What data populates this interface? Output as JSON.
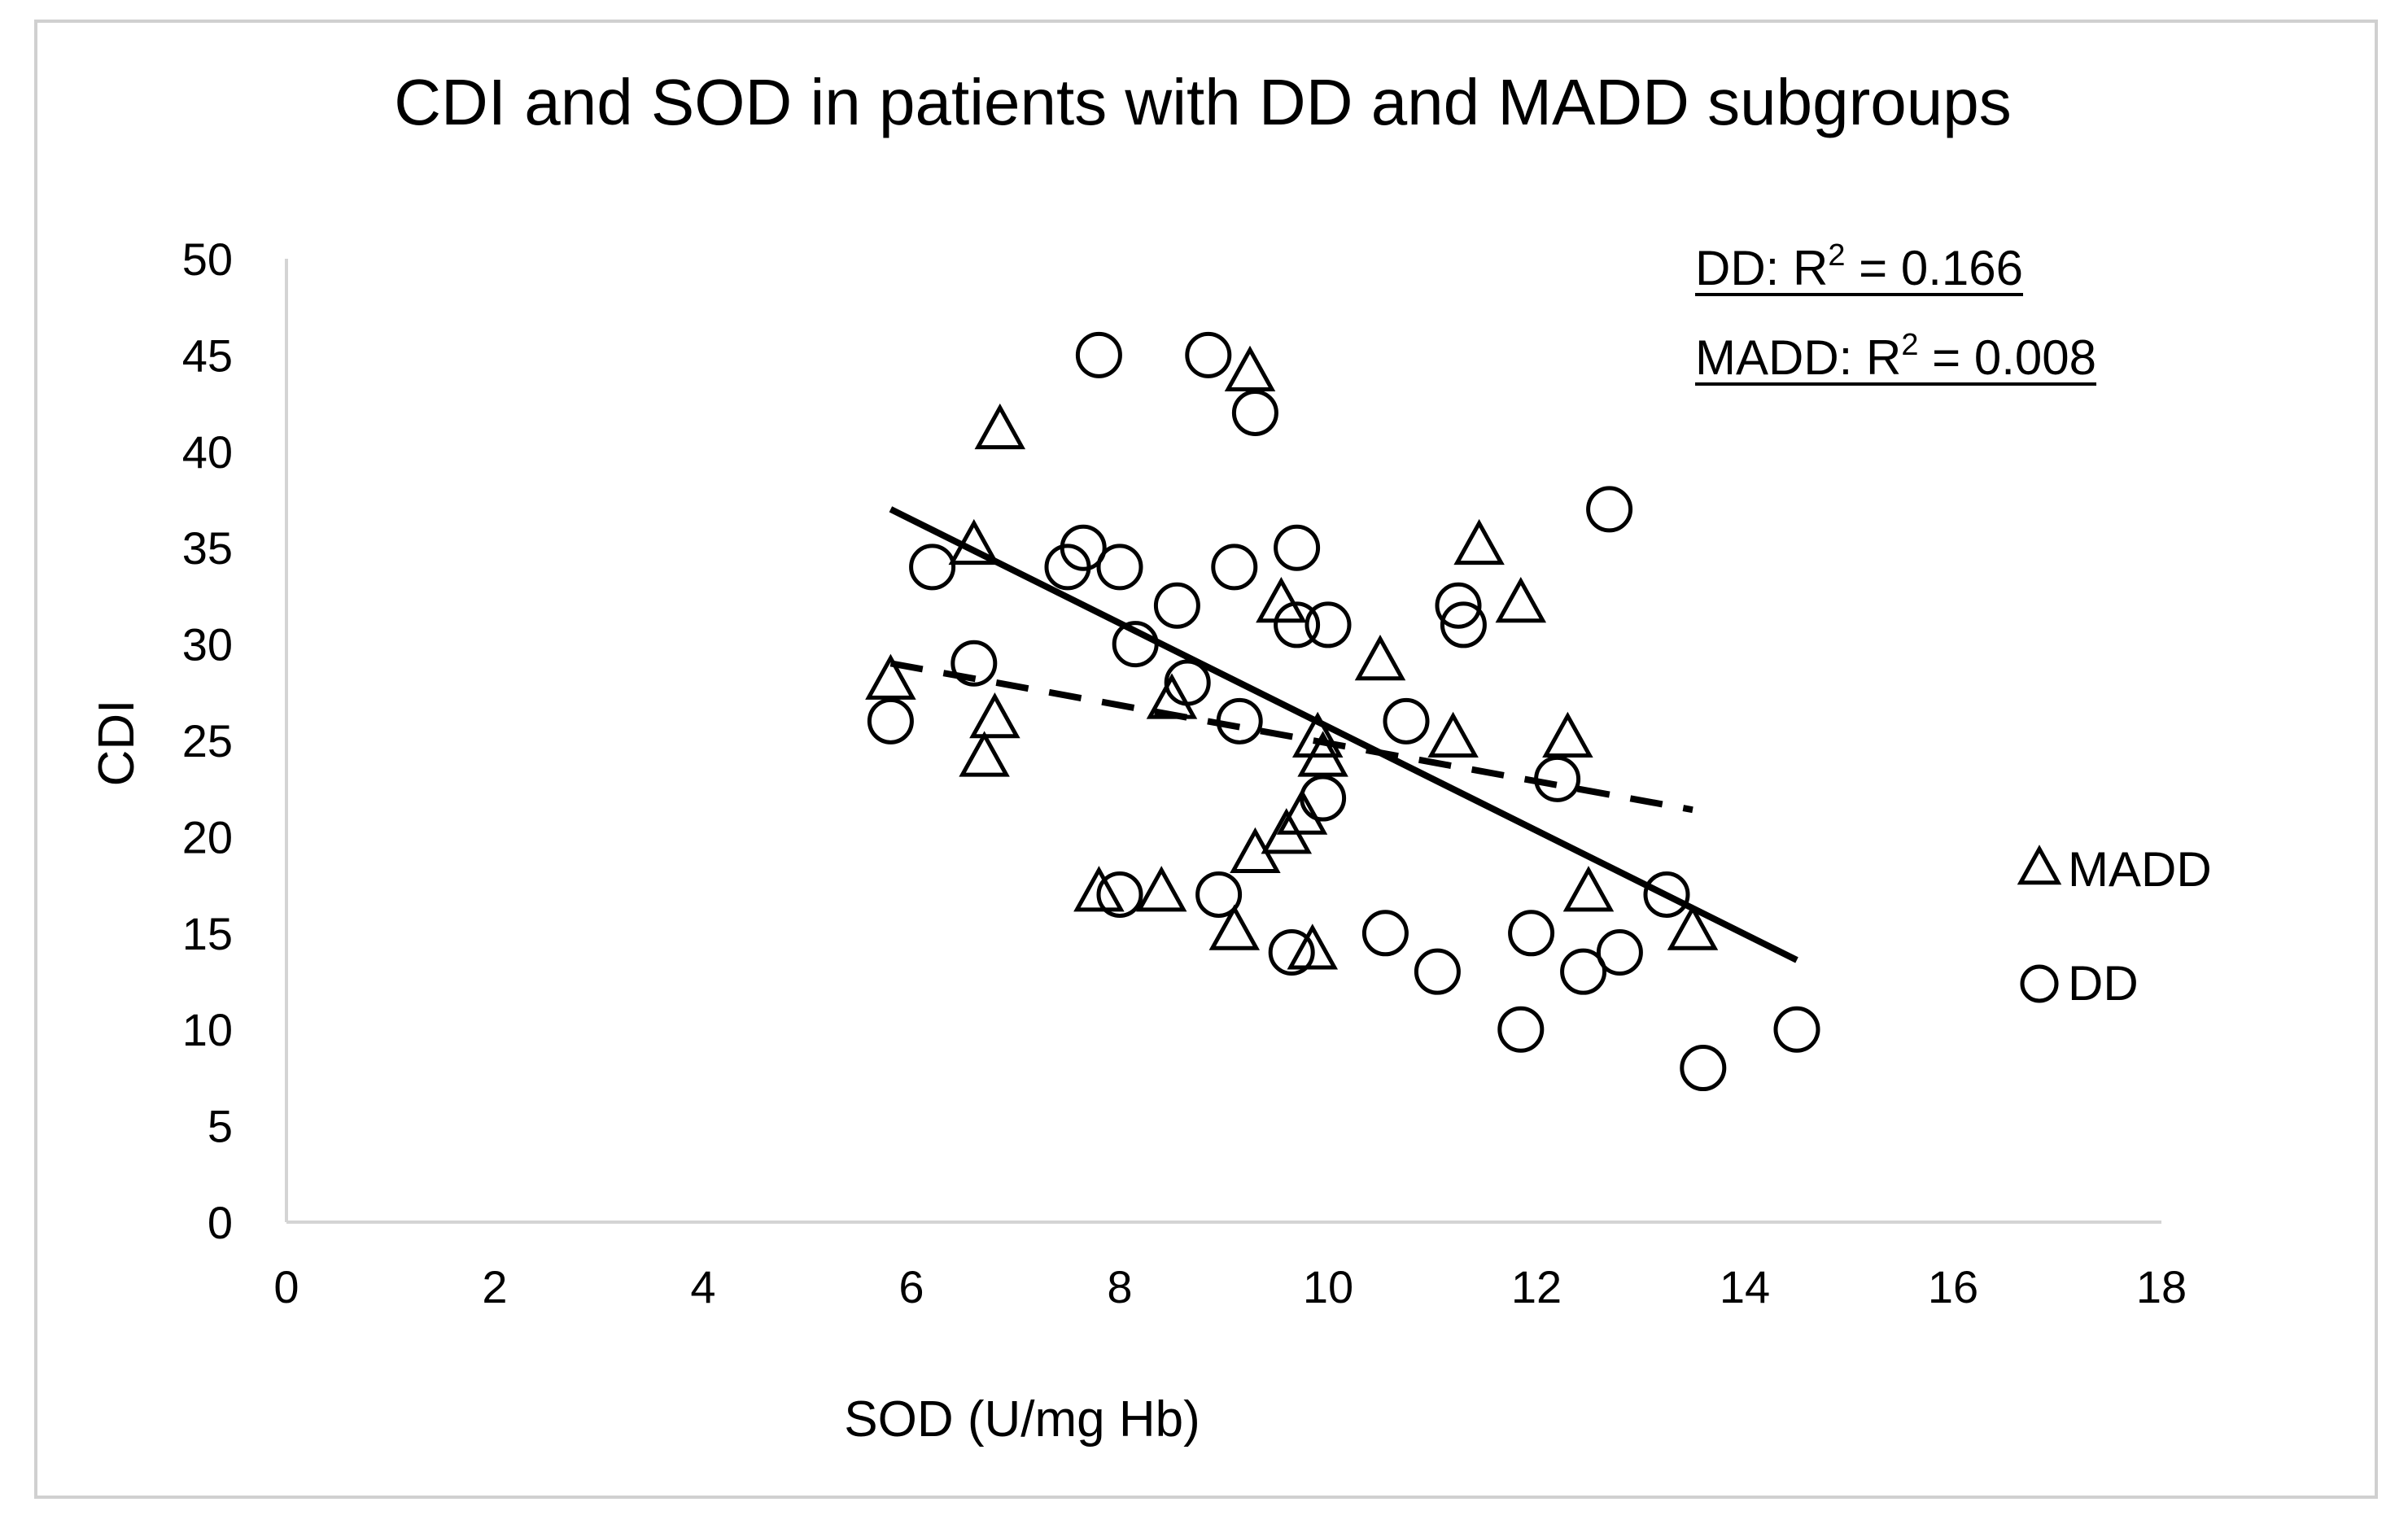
{
  "chart_data": {
    "type": "scatter",
    "title": "CDI and SOD in patients with DD and MADD subgroups",
    "xlabel": "SOD (U/mg Hb)",
    "ylabel": "CDI",
    "xlim": [
      0,
      18
    ],
    "ylim": [
      0,
      50
    ],
    "xticks": [
      "0",
      "2",
      "4",
      "6",
      "8",
      "10",
      "12",
      "14",
      "16",
      "18"
    ],
    "yticks": [
      "0",
      "5",
      "10",
      "15",
      "20",
      "25",
      "30",
      "35",
      "40",
      "45",
      "50"
    ],
    "grid": false,
    "legend_position": "right",
    "series": [
      {
        "name": "MADD",
        "marker": "triangle",
        "points": [
          [
            5.8,
            28
          ],
          [
            6.6,
            35
          ],
          [
            6.7,
            24
          ],
          [
            6.8,
            26
          ],
          [
            6.85,
            41
          ],
          [
            7.8,
            17
          ],
          [
            8.4,
            17
          ],
          [
            8.5,
            27
          ],
          [
            9.1,
            15
          ],
          [
            9.25,
            44
          ],
          [
            9.3,
            19
          ],
          [
            9.55,
            32
          ],
          [
            9.6,
            20
          ],
          [
            9.75,
            21
          ],
          [
            9.85,
            14
          ],
          [
            9.9,
            25
          ],
          [
            9.95,
            24
          ],
          [
            10.5,
            29
          ],
          [
            11.2,
            25
          ],
          [
            11.45,
            35
          ],
          [
            11.85,
            32
          ],
          [
            12.3,
            25
          ],
          [
            12.5,
            17
          ],
          [
            13.5,
            15
          ]
        ]
      },
      {
        "name": "DD",
        "marker": "circle",
        "points": [
          [
            5.8,
            26
          ],
          [
            6.2,
            34
          ],
          [
            6.6,
            29
          ],
          [
            7.5,
            34
          ],
          [
            7.65,
            35
          ],
          [
            7.8,
            45
          ],
          [
            8.0,
            34
          ],
          [
            8.0,
            17
          ],
          [
            8.15,
            30
          ],
          [
            8.55,
            32
          ],
          [
            8.65,
            28
          ],
          [
            8.85,
            45
          ],
          [
            8.95,
            17
          ],
          [
            9.1,
            34
          ],
          [
            9.15,
            26
          ],
          [
            9.3,
            42
          ],
          [
            9.65,
            14
          ],
          [
            9.7,
            31
          ],
          [
            9.7,
            35
          ],
          [
            9.95,
            22
          ],
          [
            10.0,
            31
          ],
          [
            10.55,
            15
          ],
          [
            10.75,
            26
          ],
          [
            11.05,
            13
          ],
          [
            11.25,
            32
          ],
          [
            11.3,
            31
          ],
          [
            11.85,
            10
          ],
          [
            11.95,
            15
          ],
          [
            12.2,
            23
          ],
          [
            12.45,
            13
          ],
          [
            12.7,
            37
          ],
          [
            12.8,
            14
          ],
          [
            13.25,
            17
          ],
          [
            13.6,
            8
          ],
          [
            14.5,
            10
          ]
        ]
      }
    ],
    "trendlines": [
      {
        "series": "DD",
        "style": "solid",
        "x": [
          5.8,
          14.5
        ],
        "y": [
          37,
          13.6
        ]
      },
      {
        "series": "MADD",
        "style": "dashed",
        "x": [
          5.8,
          13.5
        ],
        "y": [
          29,
          21.4
        ]
      }
    ],
    "annotations": [
      {
        "prefix": "DD: R",
        "sup": "2",
        "suffix": " = 0.166"
      },
      {
        "prefix": "MADD: R",
        "sup": "2",
        "suffix": " = 0.008"
      }
    ]
  }
}
